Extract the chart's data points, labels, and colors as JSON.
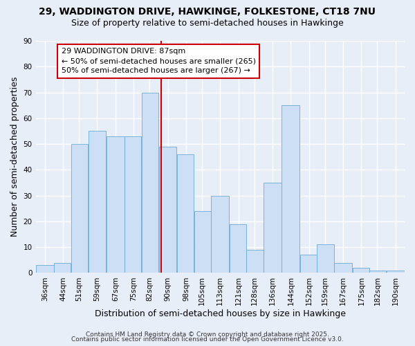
{
  "title": "29, WADDINGTON DRIVE, HAWKINGE, FOLKESTONE, CT18 7NU",
  "subtitle": "Size of property relative to semi-detached houses in Hawkinge",
  "xlabel": "Distribution of semi-detached houses by size in Hawkinge",
  "ylabel": "Number of semi-detached properties",
  "bin_labels": [
    "36sqm",
    "44sqm",
    "51sqm",
    "59sqm",
    "67sqm",
    "75sqm",
    "82sqm",
    "90sqm",
    "98sqm",
    "105sqm",
    "113sqm",
    "121sqm",
    "128sqm",
    "136sqm",
    "144sqm",
    "152sqm",
    "159sqm",
    "167sqm",
    "175sqm",
    "182sqm",
    "190sqm"
  ],
  "bar_heights": [
    3,
    4,
    50,
    55,
    53,
    53,
    70,
    49,
    46,
    24,
    30,
    19,
    9,
    35,
    65,
    7,
    11,
    4,
    2,
    1,
    1
  ],
  "bar_color": "#ccdff5",
  "bar_edgecolor": "#6aaad4",
  "marker_x_label": "82sqm",
  "marker_value": 87,
  "marker_label": "29 WADDINGTON DRIVE: 87sqm",
  "annotation_line1": "← 50% of semi-detached houses are smaller (265)",
  "annotation_line2": "50% of semi-detached houses are larger (267) →",
  "vline_color": "#cc0000",
  "background_color": "#e8eef8",
  "grid_color": "white",
  "footnote1": "Contains HM Land Registry data © Crown copyright and database right 2025.",
  "footnote2": "Contains public sector information licensed under the Open Government Licence v3.0.",
  "ylim": [
    0,
    90
  ],
  "title_fontsize": 10,
  "subtitle_fontsize": 9,
  "axis_label_fontsize": 9,
  "tick_fontsize": 7.5,
  "annotation_fontsize": 8,
  "footnote_fontsize": 6.5
}
